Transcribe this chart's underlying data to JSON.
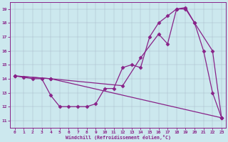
{
  "xlabel": "Windchill (Refroidissement éolien,°C)",
  "background_color": "#cce8ee",
  "line_color": "#882288",
  "xlim": [
    -0.5,
    23.5
  ],
  "ylim": [
    10.5,
    19.5
  ],
  "xticks": [
    0,
    1,
    2,
    3,
    4,
    5,
    6,
    7,
    8,
    9,
    10,
    11,
    12,
    13,
    14,
    15,
    16,
    17,
    18,
    19,
    20,
    21,
    22,
    23
  ],
  "yticks": [
    11,
    12,
    13,
    14,
    15,
    16,
    17,
    18,
    19
  ],
  "line1_x": [
    0,
    1,
    2,
    3,
    4,
    5,
    6,
    7,
    8,
    9,
    10,
    11,
    12,
    13,
    14,
    15,
    16,
    17,
    18,
    19,
    20,
    21,
    22,
    23
  ],
  "line1_y": [
    14.2,
    14.1,
    14.0,
    14.0,
    12.8,
    12.0,
    12.0,
    12.0,
    12.0,
    12.2,
    13.3,
    13.3,
    14.8,
    15.0,
    14.8,
    17.0,
    18.0,
    18.5,
    19.0,
    19.0,
    18.0,
    16.0,
    13.0,
    11.2
  ],
  "line2_x": [
    0,
    4,
    12,
    14,
    16,
    17,
    18,
    19,
    20,
    22,
    23
  ],
  "line2_y": [
    14.2,
    14.0,
    13.5,
    15.5,
    17.2,
    16.5,
    19.0,
    19.1,
    18.0,
    16.0,
    11.2
  ],
  "line3_x": [
    0,
    4,
    23
  ],
  "line3_y": [
    14.2,
    14.0,
    11.2
  ]
}
